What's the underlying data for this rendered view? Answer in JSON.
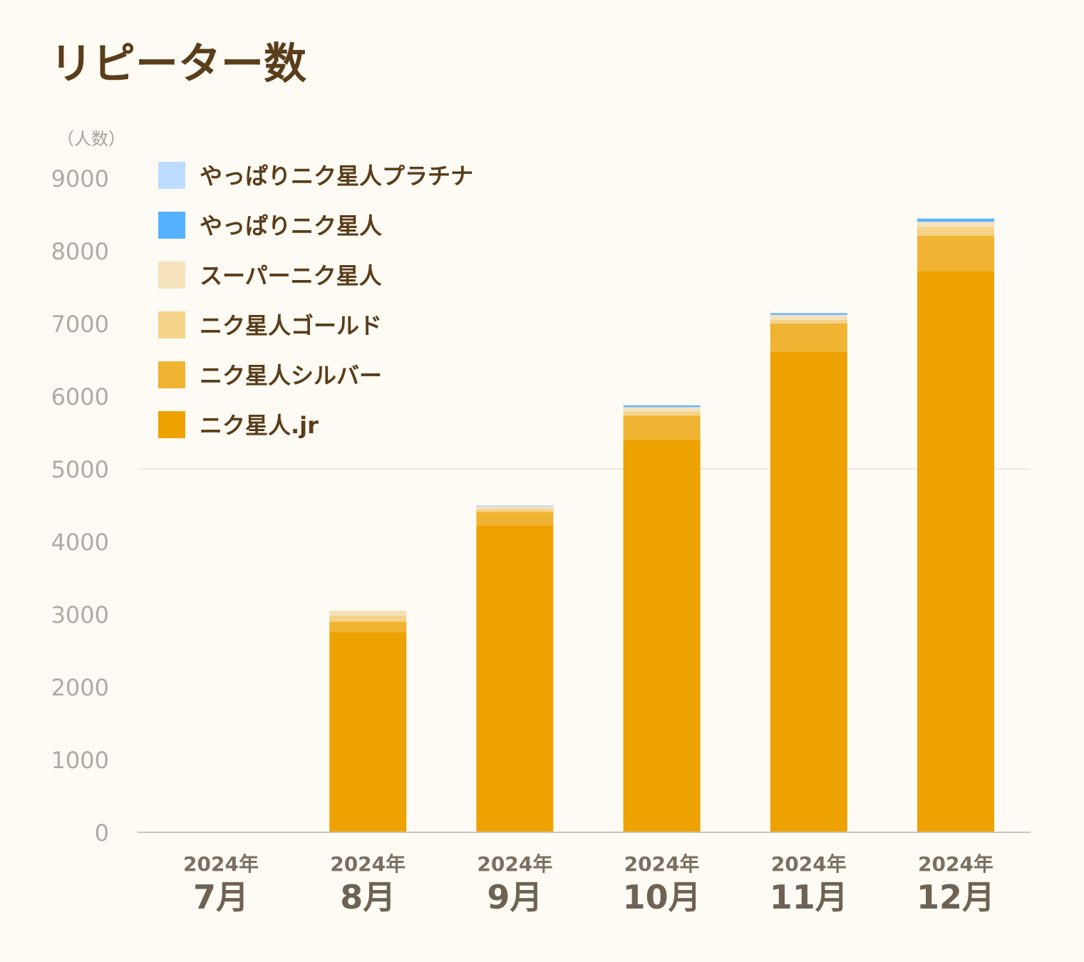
{
  "chart_data": {
    "type": "bar",
    "stacked": true,
    "title": "リピーター数",
    "ylabel": "（人数）",
    "ylim": [
      0,
      9000
    ],
    "yticks": [
      0,
      1000,
      2000,
      3000,
      4000,
      5000,
      6000,
      7000,
      8000,
      9000
    ],
    "grid_lines_at": [
      5000
    ],
    "legend_position": "top-left",
    "categories": [
      {
        "year": "2024年",
        "month": "7月"
      },
      {
        "year": "2024年",
        "month": "8月"
      },
      {
        "year": "2024年",
        "month": "9月"
      },
      {
        "year": "2024年",
        "month": "10月"
      },
      {
        "year": "2024年",
        "month": "11月"
      },
      {
        "year": "2024年",
        "month": "12月"
      }
    ],
    "series": [
      {
        "name": "ニク星人.jr",
        "color": "#eda200",
        "values": [
          0,
          2750,
          4220,
          5400,
          6610,
          7720
        ]
      },
      {
        "name": "ニク星人シルバー",
        "color": "#f0b432",
        "values": [
          0,
          150,
          190,
          330,
          390,
          490
        ]
      },
      {
        "name": "ニク星人ゴールド",
        "color": "#f5d38a",
        "values": [
          0,
          80,
          40,
          60,
          50,
          120
        ]
      },
      {
        "name": "スーパーニク星人",
        "color": "#f5e2bd",
        "values": [
          0,
          70,
          30,
          60,
          70,
          70
        ]
      },
      {
        "name": "やっぱりニク星人",
        "color": "#55b1ff",
        "values": [
          0,
          0,
          0,
          20,
          20,
          40
        ]
      },
      {
        "name": "やっぱりニク星人プラチナ",
        "color": "#bddcff",
        "values": [
          0,
          0,
          20,
          10,
          10,
          10
        ]
      }
    ]
  }
}
